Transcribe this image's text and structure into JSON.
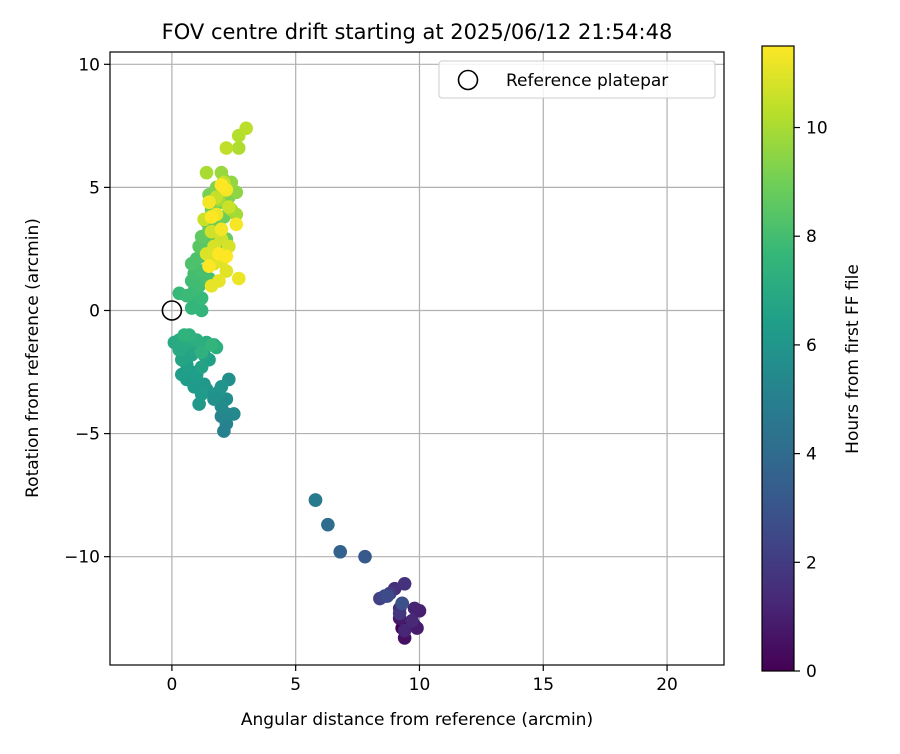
{
  "chart_data": {
    "type": "scatter",
    "title": "FOV centre drift starting at 2025/06/12 21:54:48",
    "xlabel": "Angular distance from reference (arcmin)",
    "ylabel": "Rotation from reference (arcmin)",
    "xlim": [
      -2.5,
      22.3
    ],
    "ylim": [
      -14.4,
      10.5
    ],
    "xticks": [
      0,
      5,
      10,
      15,
      20
    ],
    "yticks": [
      10,
      5,
      0,
      -5,
      -10
    ],
    "xtick_labels": [
      "0",
      "5",
      "10",
      "15",
      "20"
    ],
    "ytick_labels": [
      "10",
      "5",
      "0",
      "−5",
      "−10"
    ],
    "grid": true,
    "legend": {
      "placement": "top-right",
      "entries": [
        "Reference platepar"
      ]
    },
    "reference_point": {
      "x": 0,
      "y": 0
    },
    "colorbar": {
      "label": "Hours from first FF file",
      "range": [
        0,
        11.5
      ],
      "ticks": [
        0,
        2,
        4,
        6,
        8,
        10
      ],
      "tick_labels": [
        "0",
        "2",
        "4",
        "6",
        "8",
        "10"
      ],
      "colormap": [
        "#440154",
        "#482878",
        "#3e4a89",
        "#31688e",
        "#26828e",
        "#1f9e89",
        "#35b779",
        "#6ece58",
        "#b5de2b",
        "#fde725"
      ]
    },
    "points": [
      [
        9.3,
        -12.9,
        0.0
      ],
      [
        9.6,
        -12.7,
        0.2
      ],
      [
        9.3,
        -11.9,
        0.4
      ],
      [
        9.4,
        -13.3,
        0.5
      ],
      [
        9.8,
        -12.8,
        0.7
      ],
      [
        9.2,
        -12.5,
        0.8
      ],
      [
        9.9,
        -12.9,
        0.9
      ],
      [
        10.0,
        -12.2,
        1.0
      ],
      [
        9.8,
        -12.1,
        1.1
      ],
      [
        9.4,
        -13.0,
        1.2
      ],
      [
        9.7,
        -12.6,
        1.3
      ],
      [
        9.2,
        -12.1,
        1.4
      ],
      [
        9.0,
        -11.3,
        1.5
      ],
      [
        9.4,
        -11.1,
        1.6
      ],
      [
        9.2,
        -12.3,
        1.8
      ],
      [
        8.8,
        -11.5,
        2.0
      ],
      [
        8.4,
        -11.7,
        2.2
      ],
      [
        8.6,
        -11.6,
        2.4
      ],
      [
        8.7,
        -11.6,
        2.6
      ],
      [
        9.3,
        -11.9,
        2.8
      ],
      [
        7.8,
        -10.0,
        3.2
      ],
      [
        6.8,
        -9.8,
        3.6
      ],
      [
        6.3,
        -8.7,
        4.1
      ],
      [
        5.8,
        -7.7,
        4.6
      ],
      [
        5.8,
        -7.7,
        4.7
      ],
      [
        2.1,
        -4.9,
        5.0
      ],
      [
        2.2,
        -4.6,
        5.1
      ],
      [
        2.0,
        -4.3,
        5.2
      ],
      [
        2.2,
        -4.2,
        5.3
      ],
      [
        2.5,
        -4.2,
        5.4
      ],
      [
        2.0,
        -3.9,
        5.5
      ],
      [
        2.2,
        -3.6,
        5.6
      ],
      [
        2.3,
        -2.8,
        5.7
      ],
      [
        1.7,
        -3.6,
        5.8
      ],
      [
        1.9,
        -3.3,
        5.9
      ],
      [
        2.0,
        -3.1,
        6.0
      ],
      [
        1.4,
        -3.2,
        6.0
      ],
      [
        1.3,
        -3.0,
        6.1
      ],
      [
        1.1,
        -3.8,
        6.1
      ],
      [
        0.9,
        -3.1,
        6.2
      ],
      [
        1.2,
        -3.4,
        6.2
      ],
      [
        0.6,
        -2.8,
        6.3
      ],
      [
        0.8,
        -2.5,
        6.3
      ],
      [
        1.0,
        -2.6,
        6.4
      ],
      [
        0.4,
        -2.6,
        6.4
      ],
      [
        0.6,
        -2.2,
        6.5
      ],
      [
        1.5,
        -2.0,
        6.5
      ],
      [
        1.3,
        -1.8,
        6.6
      ],
      [
        1.2,
        -2.3,
        6.6
      ],
      [
        0.8,
        -1.8,
        6.7
      ],
      [
        0.4,
        -2.0,
        6.7
      ],
      [
        0.9,
        -1.5,
        6.8
      ],
      [
        0.5,
        -1.4,
        6.8
      ],
      [
        0.3,
        -1.6,
        6.9
      ],
      [
        0.1,
        -1.3,
        6.9
      ],
      [
        0.3,
        -1.2,
        7.0
      ],
      [
        0.6,
        -1.3,
        7.0
      ],
      [
        1.4,
        -1.3,
        7.1
      ],
      [
        1.7,
        -1.4,
        7.1
      ],
      [
        1.8,
        -1.5,
        7.2
      ],
      [
        1.0,
        -1.2,
        7.2
      ],
      [
        1.2,
        -1.7,
        7.3
      ],
      [
        0.7,
        -1.0,
        7.3
      ],
      [
        0.5,
        -1.0,
        7.4
      ],
      [
        1.6,
        -1.4,
        7.5
      ],
      [
        1.2,
        0.0,
        7.5
      ],
      [
        0.8,
        0.1,
        7.6
      ],
      [
        1.0,
        0.3,
        7.6
      ],
      [
        1.2,
        0.5,
        7.7
      ],
      [
        0.3,
        0.7,
        7.7
      ],
      [
        0.6,
        0.6,
        7.8
      ],
      [
        0.9,
        0.8,
        7.8
      ],
      [
        1.1,
        1.0,
        7.9
      ],
      [
        0.8,
        1.2,
        7.9
      ],
      [
        1.3,
        1.3,
        8.0
      ],
      [
        0.9,
        1.5,
        8.0
      ],
      [
        1.2,
        1.6,
        8.1
      ],
      [
        1.5,
        1.3,
        8.1
      ],
      [
        0.8,
        1.9,
        8.2
      ],
      [
        1.0,
        2.1,
        8.2
      ],
      [
        1.5,
        2.0,
        8.3
      ],
      [
        1.3,
        2.4,
        8.3
      ],
      [
        1.7,
        2.2,
        8.4
      ],
      [
        1.1,
        2.6,
        8.5
      ],
      [
        1.6,
        2.8,
        8.5
      ],
      [
        1.9,
        2.5,
        8.6
      ],
      [
        1.2,
        3.0,
        8.6
      ],
      [
        1.5,
        3.3,
        8.7
      ],
      [
        1.9,
        3.1,
        8.7
      ],
      [
        2.2,
        2.9,
        8.8
      ],
      [
        1.4,
        3.6,
        8.8
      ],
      [
        1.8,
        3.5,
        8.9
      ],
      [
        2.1,
        3.8,
        8.9
      ],
      [
        1.6,
        4.1,
        9.0
      ],
      [
        2.0,
        4.4,
        9.1
      ],
      [
        1.5,
        4.7,
        9.1
      ],
      [
        2.3,
        4.6,
        9.2
      ],
      [
        1.8,
        5.0,
        9.3
      ],
      [
        2.1,
        5.3,
        9.4
      ],
      [
        2.6,
        4.8,
        9.5
      ],
      [
        2.4,
        5.2,
        9.6
      ],
      [
        2.0,
        5.6,
        9.7
      ],
      [
        2.4,
        4.1,
        9.8
      ],
      [
        1.9,
        4.5,
        9.9
      ],
      [
        2.6,
        3.9,
        9.9
      ],
      [
        1.4,
        5.6,
        10.0
      ],
      [
        2.7,
        6.6,
        10.1
      ],
      [
        2.7,
        7.1,
        10.2
      ],
      [
        3.0,
        7.4,
        10.3
      ],
      [
        2.2,
        6.6,
        10.4
      ],
      [
        2.1,
        5.2,
        10.5
      ],
      [
        1.8,
        4.6,
        10.5
      ],
      [
        2.3,
        4.2,
        10.6
      ],
      [
        1.3,
        3.7,
        10.6
      ],
      [
        1.6,
        3.2,
        10.7
      ],
      [
        2.0,
        2.9,
        10.7
      ],
      [
        2.3,
        2.6,
        10.8
      ],
      [
        1.7,
        2.6,
        10.8
      ],
      [
        1.4,
        2.3,
        10.9
      ],
      [
        1.7,
        1.9,
        10.9
      ],
      [
        2.0,
        2.0,
        11.0
      ],
      [
        2.2,
        1.6,
        11.0
      ],
      [
        1.6,
        1.0,
        11.1
      ],
      [
        1.9,
        1.2,
        11.1
      ],
      [
        2.7,
        1.3,
        11.2
      ],
      [
        1.8,
        3.9,
        11.2
      ],
      [
        2.0,
        3.3,
        11.3
      ],
      [
        1.5,
        4.4,
        11.3
      ],
      [
        2.2,
        4.9,
        11.4
      ],
      [
        2.6,
        3.5,
        11.4
      ],
      [
        1.9,
        2.3,
        11.5
      ],
      [
        1.5,
        1.8,
        11.5
      ],
      [
        2.2,
        2.2,
        11.5
      ],
      [
        1.6,
        3.8,
        11.5
      ],
      [
        2.0,
        5.1,
        11.5
      ]
    ]
  }
}
